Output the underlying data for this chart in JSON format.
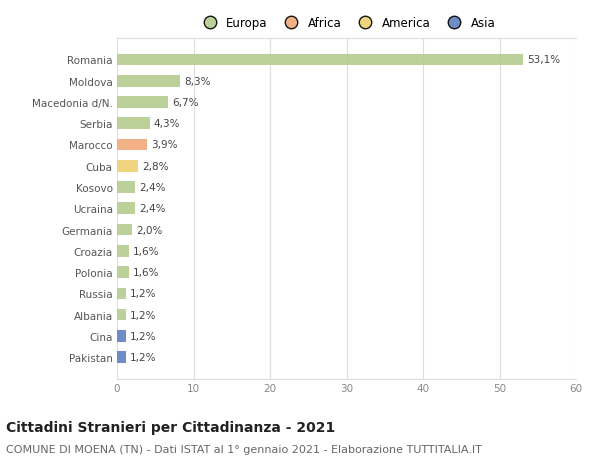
{
  "countries": [
    "Romania",
    "Moldova",
    "Macedonia d/N.",
    "Serbia",
    "Marocco",
    "Cuba",
    "Kosovo",
    "Ucraina",
    "Germania",
    "Croazia",
    "Polonia",
    "Russia",
    "Albania",
    "Cina",
    "Pakistan"
  ],
  "values": [
    53.1,
    8.3,
    6.7,
    4.3,
    3.9,
    2.8,
    2.4,
    2.4,
    2.0,
    1.6,
    1.6,
    1.2,
    1.2,
    1.2,
    1.2
  ],
  "labels": [
    "53,1%",
    "8,3%",
    "6,7%",
    "4,3%",
    "3,9%",
    "2,8%",
    "2,4%",
    "2,4%",
    "2,0%",
    "1,6%",
    "1,6%",
    "1,2%",
    "1,2%",
    "1,2%",
    "1,2%"
  ],
  "continents": [
    "Europa",
    "Europa",
    "Europa",
    "Europa",
    "Africa",
    "America",
    "Europa",
    "Europa",
    "Europa",
    "Europa",
    "Europa",
    "Europa",
    "Europa",
    "Asia",
    "Asia"
  ],
  "colors": {
    "Europa": "#b5cc8e",
    "Africa": "#f0a878",
    "America": "#f0d070",
    "Asia": "#6080c0"
  },
  "legend_order": [
    "Europa",
    "Africa",
    "America",
    "Asia"
  ],
  "legend_colors": [
    "#b5cc8e",
    "#f0a878",
    "#f0d070",
    "#6080c0"
  ],
  "xlim": [
    0,
    60
  ],
  "xticks": [
    0,
    10,
    20,
    30,
    40,
    50,
    60
  ],
  "title": "Cittadini Stranieri per Cittadinanza - 2021",
  "subtitle": "COMUNE DI MOENA (TN) - Dati ISTAT al 1° gennaio 2021 - Elaborazione TUTTITALIA.IT",
  "bg_color": "#ffffff",
  "grid_color": "#dddddd",
  "bar_height": 0.55,
  "title_fontsize": 10,
  "subtitle_fontsize": 8,
  "label_fontsize": 7.5,
  "tick_fontsize": 7.5,
  "legend_fontsize": 8.5
}
